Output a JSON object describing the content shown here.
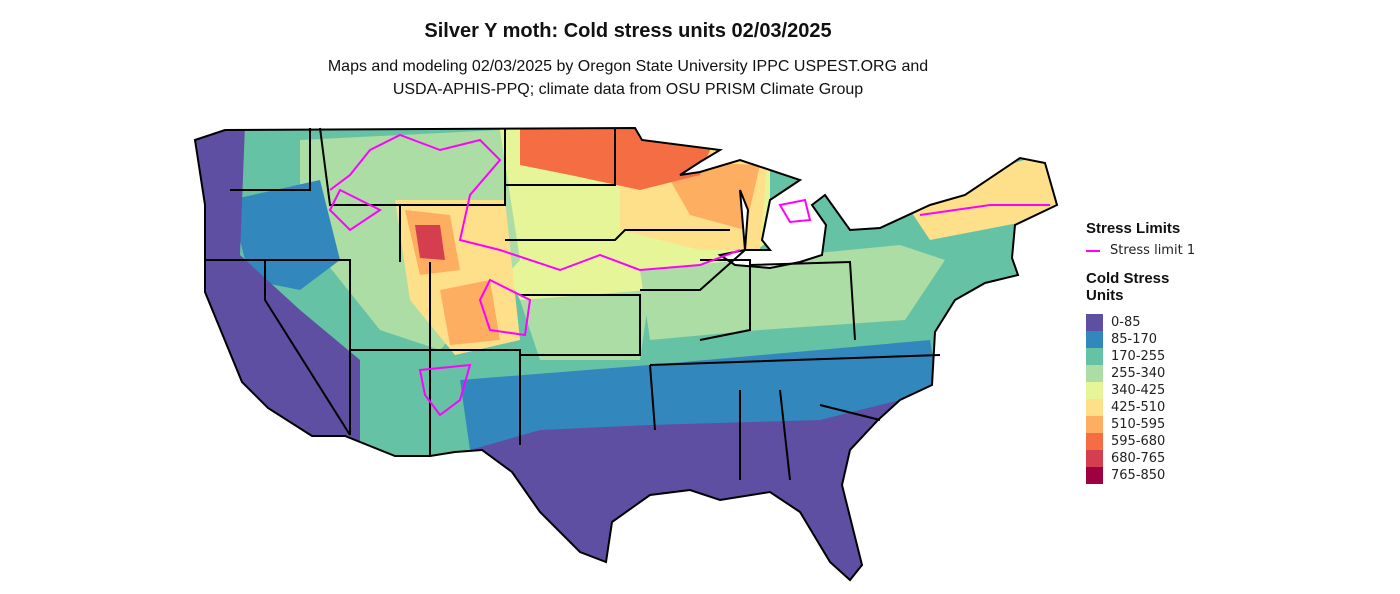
{
  "title": "Silver Y moth: Cold stress units 02/03/2025",
  "subtitle_line1": "Maps and modeling 02/03/2025 by Oregon State University IPPC USPEST.ORG and",
  "subtitle_line2": "USDA-APHIS-PPQ; climate data from OSU PRISM Climate Group",
  "legend": {
    "stress_title": "Stress Limits",
    "stress_item": "Stress limit 1",
    "stress_color": "#ff00ff",
    "units_title_1": "Cold Stress",
    "units_title_2": "Units",
    "bins": [
      {
        "label": "0-85",
        "color": "#5E4FA2"
      },
      {
        "label": "85-170",
        "color": "#3288BD"
      },
      {
        "label": "170-255",
        "color": "#66C2A5"
      },
      {
        "label": "255-340",
        "color": "#ABDDA4"
      },
      {
        "label": "340-425",
        "color": "#E6F598"
      },
      {
        "label": "425-510",
        "color": "#FEE08B"
      },
      {
        "label": "510-595",
        "color": "#FDAE61"
      },
      {
        "label": "595-680",
        "color": "#F46D43"
      },
      {
        "label": "680-765",
        "color": "#D53E4F"
      },
      {
        "label": "765-850",
        "color": "#9E0142"
      }
    ]
  }
}
